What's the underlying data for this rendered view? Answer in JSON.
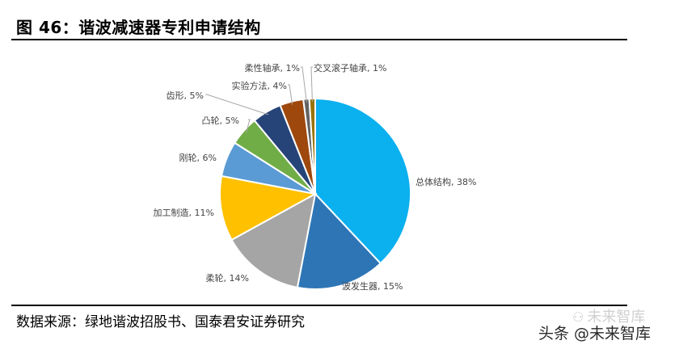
{
  "header": {
    "title": "图 46：谐波减速器专利申请结构"
  },
  "footer": {
    "source": "数据来源：绿地谐波招股书、国泰君安证券研究"
  },
  "watermark": {
    "faint": "未来智库",
    "main": "头条 @未来智库"
  },
  "chart_data": {
    "type": "pie",
    "title": "",
    "start_angle_deg": 0,
    "direction": "clockwise",
    "slices": [
      {
        "label": "总体结构",
        "value": 38,
        "color": "#0BB0EE"
      },
      {
        "label": "波发生器",
        "value": 15,
        "color": "#2E75B6"
      },
      {
        "label": "柔轮",
        "value": 14,
        "color": "#A5A5A5"
      },
      {
        "label": "加工制造",
        "value": 11,
        "color": "#FFC000"
      },
      {
        "label": "刚轮",
        "value": 6,
        "color": "#5B9BD5"
      },
      {
        "label": "凸轮",
        "value": 5,
        "color": "#70AD47"
      },
      {
        "label": "齿形",
        "value": 5,
        "color": "#264478"
      },
      {
        "label": "实验方法",
        "value": 4,
        "color": "#9E480E"
      },
      {
        "label": "柔性轴承",
        "value": 1,
        "color": "#636363"
      },
      {
        "label": "交叉滚子轴承",
        "value": 1,
        "color": "#997300"
      }
    ],
    "value_suffix": "%"
  }
}
